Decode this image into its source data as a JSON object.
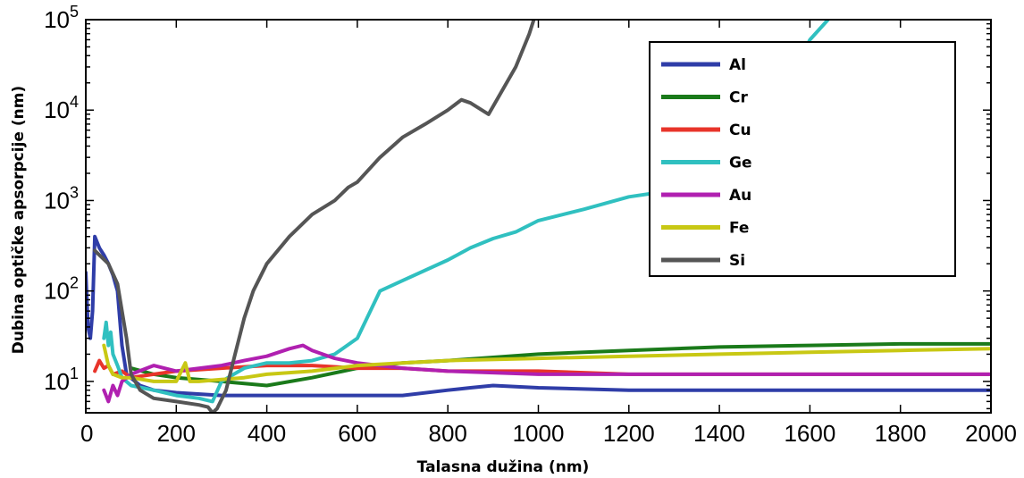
{
  "chart_data": {
    "type": "line",
    "xlabel": "Talasna dužina (nm)",
    "ylabel": "Dubina optičke apsorpcije (nm)",
    "xlim": [
      0,
      2000
    ],
    "ylim": [
      4.5,
      100000
    ],
    "yscale": "log",
    "x_ticks": [
      "0",
      "200",
      "400",
      "600",
      "800",
      "1000",
      "1200",
      "1400",
      "1600",
      "1800",
      "2000"
    ],
    "y_ticks": [
      {
        "base": "10",
        "exp": "1",
        "value": 10
      },
      {
        "base": "10",
        "exp": "2",
        "value": 100
      },
      {
        "base": "10",
        "exp": "3",
        "value": 1000
      },
      {
        "base": "10",
        "exp": "4",
        "value": 10000
      },
      {
        "base": "10",
        "exp": "5",
        "value": 100000
      }
    ],
    "grid": false,
    "legend_position": "top-right",
    "series": [
      {
        "name": "Al",
        "color": "#2f3da8",
        "x": [
          0,
          5,
          10,
          15,
          20,
          30,
          40,
          50,
          60,
          70,
          80,
          90,
          120,
          150,
          200,
          300,
          400,
          600,
          700,
          800,
          850,
          900,
          1000,
          1200,
          1400,
          1600,
          1800,
          2000
        ],
        "y": [
          160,
          40,
          30,
          60,
          400,
          300,
          250,
          200,
          150,
          100,
          25,
          12,
          9,
          8,
          7.5,
          7,
          7,
          7,
          7,
          8,
          8.5,
          9,
          8.5,
          8,
          8,
          8,
          8,
          8
        ]
      },
      {
        "name": "Cr",
        "color": "#1a7a1a",
        "x": [
          100,
          150,
          200,
          300,
          400,
          500,
          600,
          700,
          800,
          1000,
          1200,
          1400,
          1600,
          1800,
          2000
        ],
        "y": [
          14,
          12,
          11,
          10,
          9,
          11,
          14,
          16,
          17,
          20,
          22,
          24,
          25,
          26,
          26
        ]
      },
      {
        "name": "Cu",
        "color": "#e8342a",
        "x": [
          20,
          30,
          40,
          50,
          60,
          80,
          100,
          150,
          200,
          300,
          400,
          500,
          600,
          700,
          800,
          1000,
          1200,
          1400,
          1600,
          1800,
          2000
        ],
        "y": [
          13,
          17,
          14,
          15,
          12,
          13,
          11,
          12,
          13,
          14,
          15,
          15,
          14,
          14,
          13,
          13,
          12,
          12,
          12,
          12,
          12
        ]
      },
      {
        "name": "Ge",
        "color": "#30c0c0",
        "x": [
          40,
          45,
          50,
          55,
          60,
          70,
          80,
          100,
          150,
          200,
          250,
          280,
          300,
          350,
          400,
          450,
          500,
          550,
          600,
          650,
          700,
          800,
          850,
          900,
          950,
          1000,
          1100,
          1200,
          1300,
          1400,
          1500,
          1550,
          1600,
          1640
        ],
        "y": [
          30,
          45,
          25,
          35,
          20,
          15,
          11,
          9,
          8,
          7,
          6.5,
          6,
          10,
          14,
          16,
          16,
          17,
          20,
          30,
          100,
          130,
          220,
          300,
          380,
          450,
          600,
          800,
          1100,
          1300,
          1800,
          5000,
          20000,
          60000,
          100000
        ]
      },
      {
        "name": "Au",
        "color": "#b020b0",
        "x": [
          40,
          50,
          60,
          70,
          80,
          100,
          150,
          200,
          300,
          350,
          400,
          450,
          480,
          500,
          550,
          600,
          700,
          800,
          1000,
          1200,
          1400,
          1600,
          1800,
          2000
        ],
        "y": [
          8,
          6,
          9,
          7,
          10,
          12,
          15,
          13,
          15,
          17,
          19,
          23,
          25,
          22,
          18,
          16,
          14,
          13,
          12,
          12,
          12,
          12,
          12,
          12
        ]
      },
      {
        "name": "Fe",
        "color": "#c8c814",
        "x": [
          40,
          50,
          60,
          80,
          100,
          150,
          200,
          220,
          230,
          250,
          300,
          350,
          400,
          500,
          600,
          700,
          800,
          1000,
          1200,
          1400,
          1600,
          1800,
          2000
        ],
        "y": [
          25,
          15,
          12,
          11,
          11,
          10,
          10,
          16,
          10,
          10,
          10.5,
          11,
          12,
          13,
          15,
          16,
          17,
          18,
          19,
          20,
          21,
          22,
          23
        ]
      },
      {
        "name": "Si",
        "color": "#555555",
        "x": [
          20,
          30,
          50,
          70,
          90,
          100,
          120,
          150,
          200,
          250,
          270,
          280,
          290,
          310,
          330,
          350,
          370,
          400,
          450,
          500,
          550,
          580,
          600,
          650,
          700,
          750,
          800,
          830,
          850,
          890,
          950,
          980,
          990
        ],
        "y": [
          280,
          250,
          200,
          120,
          30,
          12,
          8,
          6.5,
          6,
          5.5,
          5.2,
          4.5,
          5,
          8,
          20,
          50,
          100,
          200,
          400,
          700,
          1000,
          1400,
          1600,
          3000,
          5000,
          7000,
          10000,
          13000,
          12000,
          9000,
          30000,
          70000,
          100000
        ]
      }
    ]
  }
}
